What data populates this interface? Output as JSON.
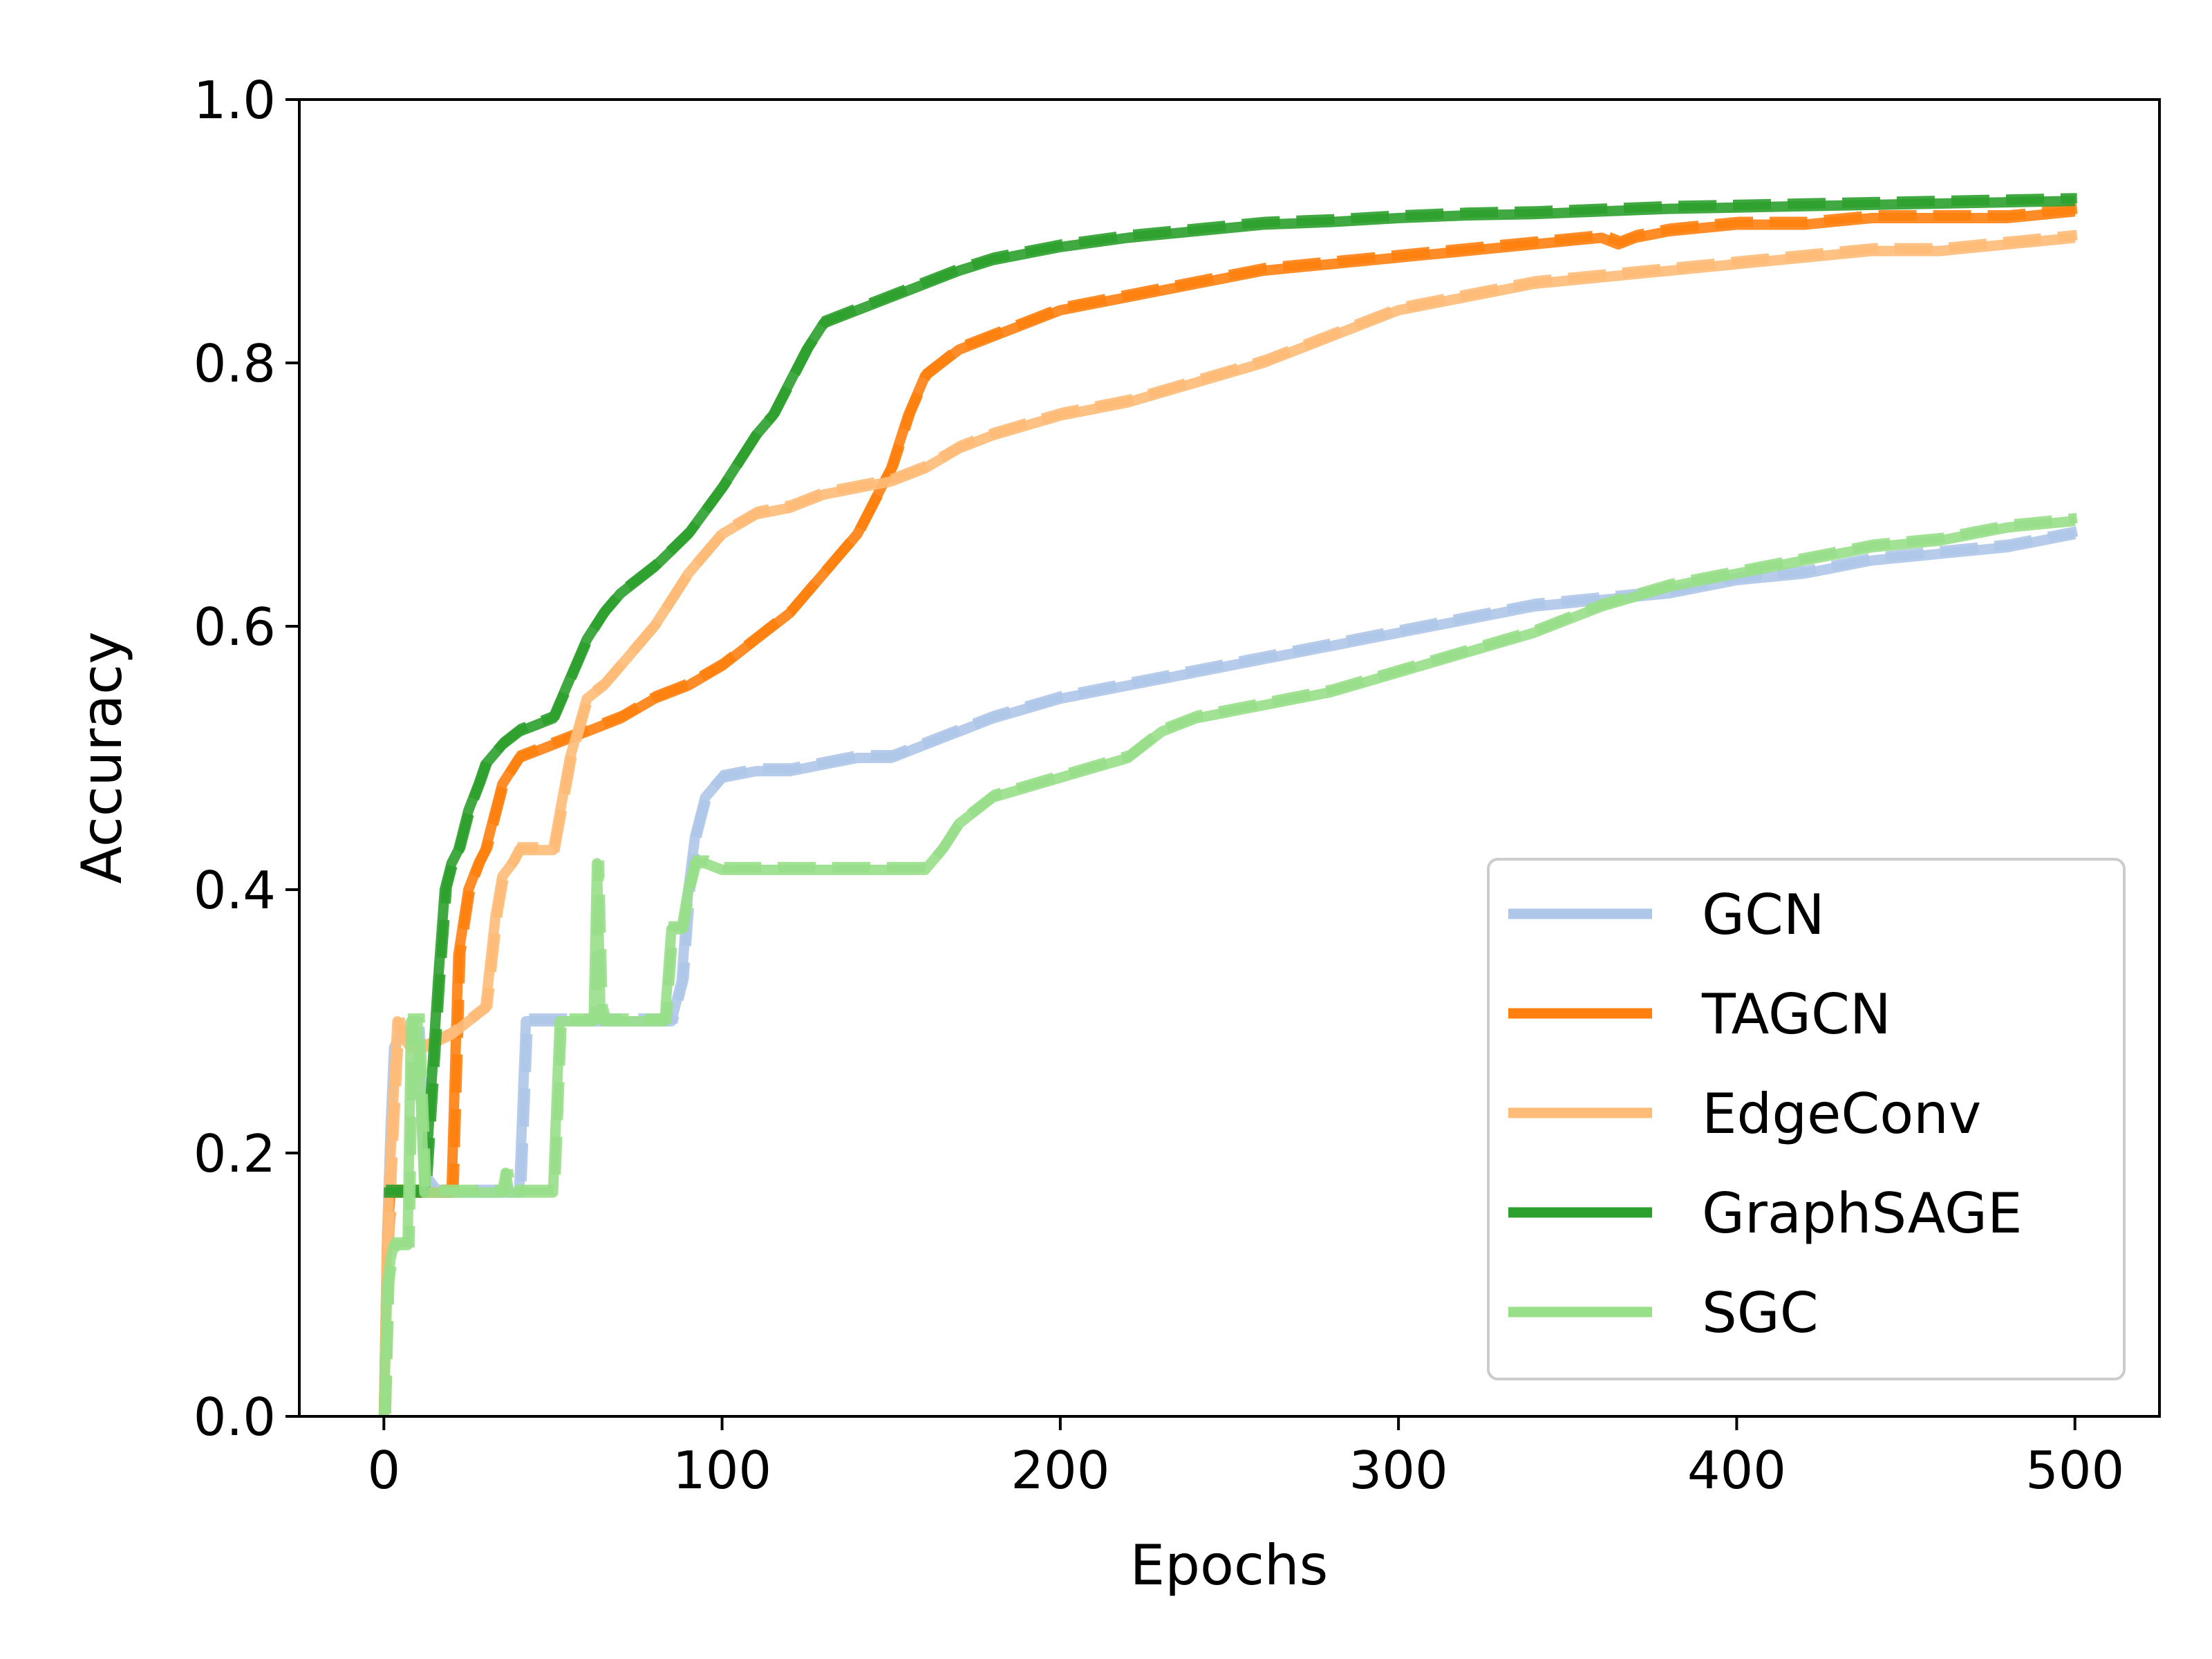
{
  "chart_data": {
    "type": "line",
    "xlabel": "Epochs",
    "ylabel": "Accuracy",
    "xlim": [
      -25,
      525
    ],
    "ylim": [
      0.0,
      1.0
    ],
    "xticks": [
      0,
      100,
      200,
      300,
      400,
      500
    ],
    "yticks": [
      0.0,
      0.2,
      0.4,
      0.6,
      0.8,
      1.0
    ],
    "xtick_labels": [
      "0",
      "100",
      "200",
      "300",
      "400",
      "500"
    ],
    "ytick_labels": [
      "0.0",
      "0.2",
      "0.4",
      "0.6",
      "0.8",
      "1.0"
    ],
    "grid": false,
    "legend_position": "lower-right",
    "line_styles": [
      "solid",
      "dashed"
    ],
    "series": [
      {
        "name": "GCN",
        "color": "#aec7e8",
        "x": [
          0,
          1,
          2,
          3,
          5,
          10,
          12,
          15,
          20,
          30,
          40,
          42,
          45,
          50,
          60,
          70,
          80,
          85,
          88,
          90,
          92,
          95,
          100,
          110,
          120,
          130,
          140,
          150,
          160,
          170,
          180,
          200,
          220,
          240,
          260,
          280,
          300,
          320,
          340,
          360,
          380,
          400,
          420,
          440,
          460,
          480,
          500
        ],
        "y": [
          0.0,
          0.14,
          0.22,
          0.28,
          0.29,
          0.29,
          0.18,
          0.17,
          0.17,
          0.17,
          0.17,
          0.3,
          0.3,
          0.3,
          0.3,
          0.3,
          0.3,
          0.3,
          0.33,
          0.4,
          0.44,
          0.47,
          0.485,
          0.49,
          0.49,
          0.495,
          0.5,
          0.5,
          0.51,
          0.52,
          0.53,
          0.545,
          0.555,
          0.565,
          0.575,
          0.585,
          0.595,
          0.605,
          0.615,
          0.62,
          0.625,
          0.635,
          0.64,
          0.65,
          0.655,
          0.66,
          0.67
        ]
      },
      {
        "name": "TAGCN",
        "color": "#ff7f0e",
        "x": [
          0,
          1,
          2,
          5,
          10,
          15,
          20,
          22,
          25,
          28,
          30,
          35,
          40,
          50,
          60,
          70,
          80,
          90,
          100,
          110,
          120,
          130,
          140,
          150,
          155,
          160,
          165,
          170,
          180,
          200,
          220,
          240,
          260,
          280,
          300,
          320,
          340,
          360,
          365,
          370,
          380,
          400,
          420,
          440,
          460,
          480,
          500
        ],
        "y": [
          0.0,
          0.14,
          0.17,
          0.17,
          0.17,
          0.17,
          0.17,
          0.35,
          0.4,
          0.42,
          0.43,
          0.48,
          0.5,
          0.51,
          0.52,
          0.53,
          0.545,
          0.555,
          0.57,
          0.59,
          0.61,
          0.64,
          0.67,
          0.72,
          0.76,
          0.79,
          0.8,
          0.81,
          0.82,
          0.84,
          0.85,
          0.86,
          0.87,
          0.875,
          0.88,
          0.885,
          0.89,
          0.895,
          0.89,
          0.895,
          0.9,
          0.905,
          0.905,
          0.91,
          0.91,
          0.91,
          0.915
        ]
      },
      {
        "name": "EdgeConv",
        "color": "#ffbb78",
        "x": [
          0,
          1,
          2,
          4,
          5,
          8,
          12,
          20,
          25,
          30,
          33,
          35,
          38,
          40,
          45,
          50,
          55,
          60,
          65,
          70,
          80,
          90,
          100,
          110,
          120,
          130,
          140,
          150,
          160,
          170,
          180,
          200,
          220,
          240,
          260,
          280,
          300,
          320,
          340,
          360,
          380,
          400,
          420,
          440,
          460,
          480,
          500
        ],
        "y": [
          0.0,
          0.14,
          0.2,
          0.3,
          0.29,
          0.28,
          0.28,
          0.29,
          0.3,
          0.31,
          0.38,
          0.41,
          0.42,
          0.43,
          0.43,
          0.43,
          0.5,
          0.545,
          0.555,
          0.57,
          0.6,
          0.64,
          0.67,
          0.685,
          0.69,
          0.7,
          0.705,
          0.71,
          0.72,
          0.735,
          0.745,
          0.76,
          0.77,
          0.785,
          0.8,
          0.82,
          0.84,
          0.85,
          0.86,
          0.865,
          0.87,
          0.875,
          0.88,
          0.885,
          0.885,
          0.89,
          0.895
        ]
      },
      {
        "name": "GraphSAGE",
        "color": "#2ca02c",
        "x": [
          0,
          5,
          10,
          12,
          14,
          16,
          18,
          20,
          22,
          25,
          28,
          30,
          35,
          40,
          45,
          50,
          55,
          60,
          65,
          70,
          80,
          90,
          100,
          110,
          115,
          120,
          125,
          130,
          135,
          140,
          150,
          160,
          170,
          180,
          200,
          220,
          240,
          260,
          280,
          300,
          320,
          340,
          360,
          380,
          400,
          420,
          440,
          460,
          480,
          500
        ],
        "y": [
          0.17,
          0.17,
          0.17,
          0.17,
          0.25,
          0.33,
          0.4,
          0.42,
          0.43,
          0.46,
          0.48,
          0.495,
          0.51,
          0.52,
          0.525,
          0.53,
          0.56,
          0.59,
          0.61,
          0.625,
          0.645,
          0.67,
          0.705,
          0.745,
          0.76,
          0.785,
          0.81,
          0.83,
          0.835,
          0.84,
          0.85,
          0.86,
          0.87,
          0.878,
          0.888,
          0.895,
          0.9,
          0.905,
          0.907,
          0.91,
          0.912,
          0.913,
          0.915,
          0.917,
          0.918,
          0.919,
          0.92,
          0.921,
          0.922,
          0.923
        ]
      },
      {
        "name": "SGC",
        "color": "#98df8a",
        "x": [
          0,
          1,
          2,
          3,
          5,
          7,
          8,
          10,
          12,
          15,
          20,
          30,
          35,
          36,
          37,
          40,
          45,
          50,
          52,
          55,
          60,
          62,
          63,
          64,
          65,
          70,
          80,
          83,
          85,
          88,
          90,
          92,
          95,
          100,
          120,
          140,
          160,
          165,
          170,
          180,
          200,
          220,
          230,
          240,
          260,
          280,
          300,
          320,
          340,
          360,
          380,
          400,
          420,
          440,
          460,
          480,
          500
        ],
        "y": [
          0.0,
          0.1,
          0.12,
          0.13,
          0.13,
          0.13,
          0.3,
          0.3,
          0.17,
          0.17,
          0.17,
          0.17,
          0.17,
          0.185,
          0.17,
          0.17,
          0.17,
          0.17,
          0.3,
          0.3,
          0.3,
          0.3,
          0.42,
          0.31,
          0.3,
          0.3,
          0.3,
          0.3,
          0.37,
          0.37,
          0.4,
          0.42,
          0.42,
          0.415,
          0.415,
          0.415,
          0.415,
          0.43,
          0.45,
          0.47,
          0.485,
          0.5,
          0.52,
          0.53,
          0.54,
          0.55,
          0.565,
          0.58,
          0.595,
          0.615,
          0.63,
          0.64,
          0.65,
          0.66,
          0.665,
          0.675,
          0.68
        ]
      }
    ]
  }
}
